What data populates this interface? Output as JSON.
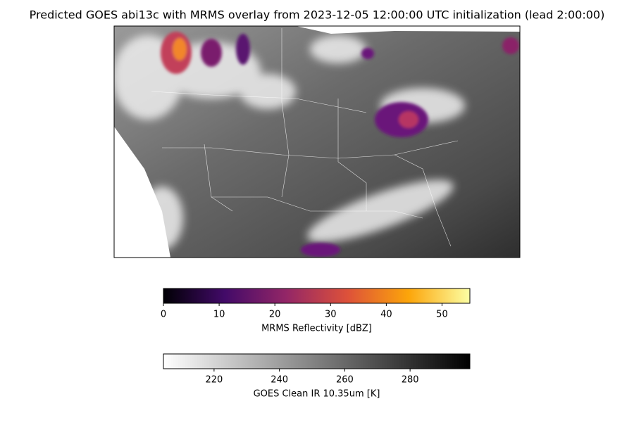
{
  "title": "Predicted GOES abi13c with MRMS overlay from 2023-12-05 12:00:00 UTC initialization (lead 2:00:00)",
  "colorbars": [
    {
      "label": "MRMS Reflectivity [dBZ]",
      "range": [
        0,
        55
      ],
      "ticks": [
        0,
        10,
        20,
        30,
        40,
        50
      ],
      "colors": [
        "#000004",
        "#420a68",
        "#932667",
        "#dd513a",
        "#fca50a",
        "#fcffa4"
      ]
    },
    {
      "label": "GOES Clean IR 10.35um [K]",
      "range": [
        204.5,
        298.3
      ],
      "ticks": [
        220,
        240,
        260,
        280
      ],
      "colors": [
        "#ffffff",
        "#000000"
      ]
    }
  ]
}
